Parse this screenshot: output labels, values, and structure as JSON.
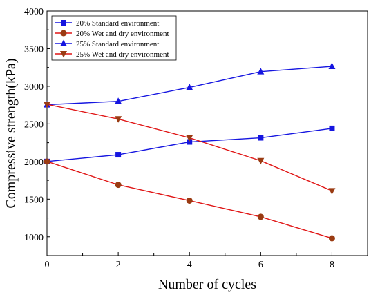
{
  "chart_data": {
    "type": "line",
    "xlabel": "Number of cycles",
    "ylabel": "Compressive strength(kPa)",
    "xlim": [
      0,
      9
    ],
    "ylim": [
      750,
      4000
    ],
    "xticks": [
      0,
      2,
      4,
      6,
      8
    ],
    "yticks": [
      1000,
      1500,
      2000,
      2500,
      3000,
      3500,
      4000
    ],
    "xtick_labels": [
      "0",
      "2",
      "4",
      "6",
      "8"
    ],
    "ytick_labels": [
      "1000",
      "1500",
      "2000",
      "2500",
      "3000",
      "3500",
      "4000"
    ],
    "grid": false,
    "legend_position": "top-left",
    "series": [
      {
        "name": "20% Standard environment",
        "color": "#1515e0",
        "marker": "square",
        "x": [
          0,
          2,
          4,
          6,
          8
        ],
        "y": [
          2000,
          2090,
          2260,
          2315,
          2440
        ]
      },
      {
        "name": "20% Wet and dry environment",
        "color": "#e01515",
        "marker_color": "#9a3b12",
        "marker": "circle",
        "x": [
          0,
          2,
          4,
          6,
          8
        ],
        "y": [
          2000,
          1690,
          1480,
          1265,
          980
        ]
      },
      {
        "name": "25% Standard environment",
        "color": "#1515e0",
        "marker": "triangle-up",
        "x": [
          0,
          2,
          4,
          6,
          8
        ],
        "y": [
          2755,
          2800,
          2985,
          3195,
          3265
        ]
      },
      {
        "name": "25% Wet and dry environment",
        "color": "#e01515",
        "marker_color": "#9a3b12",
        "marker": "triangle-down",
        "x": [
          0,
          2,
          4,
          6,
          8
        ],
        "y": [
          2760,
          2565,
          2315,
          2010,
          1610
        ]
      }
    ]
  }
}
